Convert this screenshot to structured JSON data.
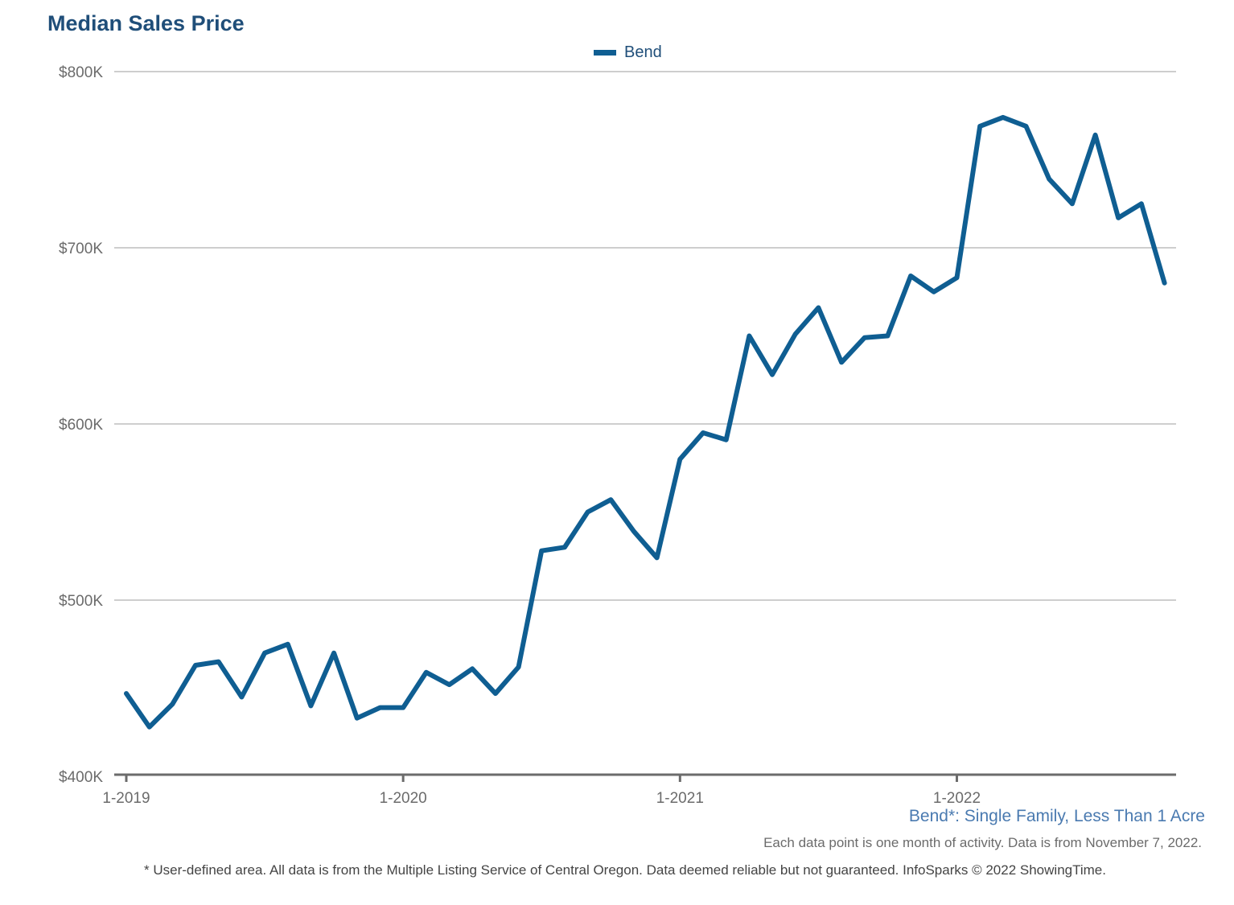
{
  "title": "Median Sales Price",
  "footnotes": {
    "area": "Bend*: Single Family, Less Than 1 Acre",
    "data_note": "Each data point is one month of activity. Data is from November 7, 2022.",
    "source": "* User-defined area. All data is from the Multiple Listing Service of Central Oregon. Data deemed reliable but not guaranteed. InfoSparks © 2022 ShowingTime."
  },
  "colors": {
    "line": "#0f5e92",
    "title": "#1f4e79",
    "grid": "#bdbdbd",
    "axis": "#6b6b6b"
  },
  "chart_data": {
    "type": "line",
    "title": "Median Sales Price",
    "xlabel": "",
    "ylabel": "",
    "ylim": [
      400000,
      800000
    ],
    "yticks": [
      400000,
      500000,
      600000,
      700000,
      800000
    ],
    "ytick_labels": [
      "$400K",
      "$500K",
      "$600K",
      "$700K",
      "$800K"
    ],
    "xticks": [
      "1-2019",
      "1-2020",
      "1-2021",
      "1-2022"
    ],
    "grid": true,
    "legend": "top-center",
    "x": [
      "2019-01",
      "2019-02",
      "2019-03",
      "2019-04",
      "2019-05",
      "2019-06",
      "2019-07",
      "2019-08",
      "2019-09",
      "2019-10",
      "2019-11",
      "2019-12",
      "2020-01",
      "2020-02",
      "2020-03",
      "2020-04",
      "2020-05",
      "2020-06",
      "2020-07",
      "2020-08",
      "2020-09",
      "2020-10",
      "2020-11",
      "2020-12",
      "2021-01",
      "2021-02",
      "2021-03",
      "2021-04",
      "2021-05",
      "2021-06",
      "2021-07",
      "2021-08",
      "2021-09",
      "2021-10",
      "2021-11",
      "2021-12",
      "2022-01",
      "2022-02",
      "2022-03",
      "2022-04",
      "2022-05",
      "2022-06",
      "2022-07",
      "2022-08",
      "2022-09",
      "2022-10"
    ],
    "series": [
      {
        "name": "Bend",
        "values": [
          447000,
          428000,
          441000,
          463000,
          465000,
          445000,
          470000,
          475000,
          440000,
          470000,
          433000,
          439000,
          439000,
          459000,
          452000,
          461000,
          447000,
          462000,
          528000,
          530000,
          550000,
          557000,
          539000,
          524000,
          580000,
          595000,
          591000,
          650000,
          628000,
          651000,
          666000,
          635000,
          649000,
          650000,
          684000,
          675000,
          683000,
          769000,
          774000,
          769000,
          739000,
          725000,
          764000,
          717000,
          725000,
          680000
        ]
      }
    ]
  }
}
